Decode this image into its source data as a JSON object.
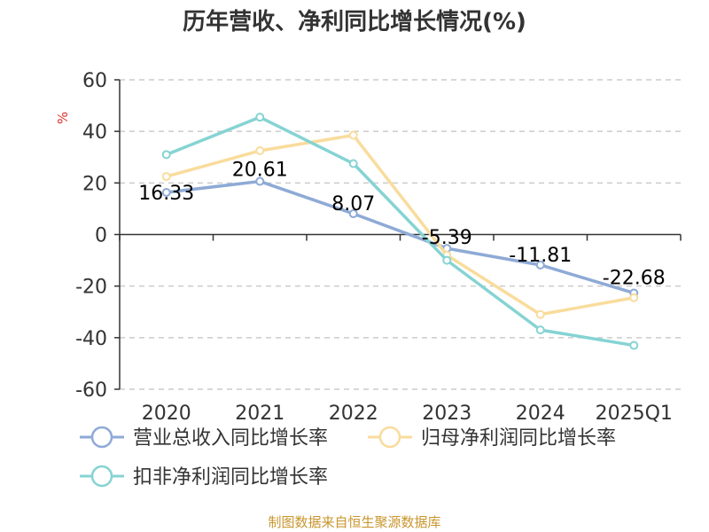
{
  "chart_data": {
    "type": "line",
    "title": "历年营收、净利同比增长情况(%)",
    "ylabel": "%",
    "xlabel": "",
    "categories": [
      "2020",
      "2021",
      "2022",
      "2023",
      "2024",
      "2025Q1"
    ],
    "ylim": [
      -60,
      60
    ],
    "yticks": [
      60,
      40,
      20,
      0,
      -20,
      -40,
      -60
    ],
    "grid": true,
    "legend_position": "bottom",
    "series": [
      {
        "name": "营业总收入同比增长率",
        "color": "#8eaad6",
        "values": [
          16.33,
          20.61,
          8.07,
          -5.39,
          -11.81,
          -22.68
        ],
        "labels": [
          "16.33",
          "20.61",
          "8.07",
          "-5.39",
          "-11.81",
          "-22.68"
        ]
      },
      {
        "name": "归母净利润同比增长率",
        "color": "#f9dc9c",
        "values": [
          22.5,
          32.5,
          38.5,
          -8.0,
          -31.0,
          -24.5
        ]
      },
      {
        "name": "扣非净利润同比增长率",
        "color": "#86d3d3",
        "values": [
          31.0,
          45.5,
          27.5,
          -10.0,
          -37.0,
          -43.0
        ]
      }
    ],
    "source": "制图数据来自恒生聚源数据库"
  }
}
